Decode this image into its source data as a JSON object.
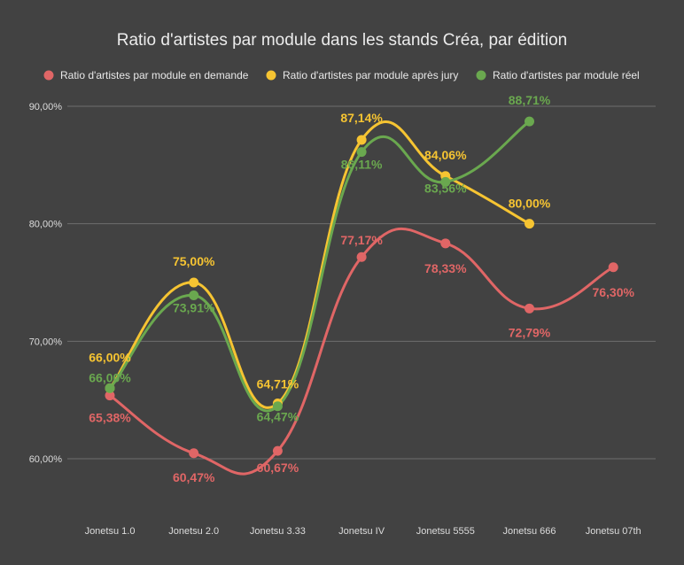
{
  "chart_data": {
    "type": "line",
    "title": "Ratio d'artistes par module dans les stands Créa, par édition",
    "xlabel": "",
    "ylabel": "",
    "categories": [
      "Jonetsu 1.0",
      "Jonetsu 2.0",
      "Jonetsu 3.33",
      "Jonetsu IV",
      "Jonetsu 5555",
      "Jonetsu 666",
      "Jonetsu 07th"
    ],
    "y_ticks": [
      "60,00%",
      "70,00%",
      "80,00%",
      "90,00%"
    ],
    "ylim": [
      60,
      90
    ],
    "grid": true,
    "legend_position": "top",
    "background": "#424242",
    "series": [
      {
        "name": "Ratio d'artistes par module en demande",
        "color": "#e06666",
        "values": [
          65.38,
          60.47,
          60.67,
          77.17,
          78.33,
          72.79,
          76.3
        ],
        "labels": [
          "65,38%",
          "60,47%",
          "60,67%",
          "77,17%",
          "78,33%",
          "72,79%",
          "76,30%"
        ]
      },
      {
        "name": "Ratio d'artistes par module après jury",
        "color": "#f6c432",
        "values": [
          66.0,
          75.0,
          64.71,
          87.14,
          84.06,
          80.0,
          null
        ],
        "labels": [
          "66,00%",
          "75,00%",
          "64,71%",
          "87,14%",
          "84,06%",
          "80,00%",
          null
        ]
      },
      {
        "name": "Ratio d'artistes par module réel",
        "color": "#6aa84f",
        "values": [
          66.0,
          73.91,
          64.47,
          86.11,
          83.56,
          88.71,
          null
        ],
        "labels": [
          "66,00%",
          "73,91%",
          "64,47%",
          "86,11%",
          "83,56%",
          "88,71%",
          null
        ]
      }
    ]
  }
}
